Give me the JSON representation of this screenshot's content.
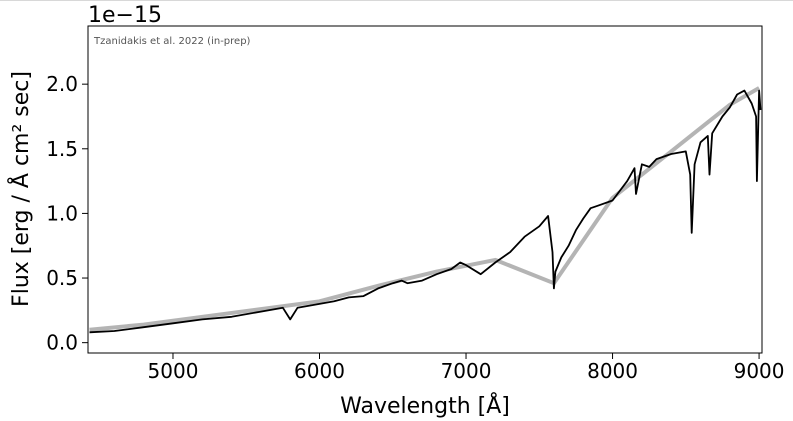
{
  "chart_data": {
    "type": "line",
    "annotation": "Tzanidakis et al. 2022 (in-prep)",
    "xlabel": "Wavelength [Å]",
    "ylabel": "Flux [erg / Å cm² sec]",
    "y_offset_label": "1e−15",
    "xlim": [
      4420,
      9020
    ],
    "ylim": [
      -0.08,
      2.45
    ],
    "x_ticks": [
      5000,
      6000,
      7000,
      8000,
      9000
    ],
    "x_tick_labels": [
      "5000",
      "6000",
      "7000",
      "8000",
      "9000"
    ],
    "y_ticks": [
      0.0,
      0.5,
      1.0,
      1.5,
      2.0
    ],
    "y_tick_labels": [
      "0.0",
      "0.5",
      "1.0",
      "1.5",
      "2.0"
    ],
    "grid": false,
    "series": [
      {
        "role": "flux",
        "color": "#000000",
        "x": [
          4430,
          4600,
          4800,
          5000,
          5200,
          5400,
          5600,
          5750,
          5800,
          5850,
          6000,
          6100,
          6200,
          6300,
          6400,
          6500,
          6560,
          6600,
          6700,
          6800,
          6900,
          6960,
          7000,
          7100,
          7200,
          7300,
          7400,
          7500,
          7560,
          7590,
          7600,
          7610,
          7650,
          7700,
          7750,
          7800,
          7850,
          7900,
          8000,
          8100,
          8150,
          8160,
          8200,
          8250,
          8300,
          8400,
          8500,
          8530,
          8540,
          8560,
          8600,
          8650,
          8662,
          8680,
          8750,
          8800,
          8850,
          8900,
          8950,
          8980,
          8985,
          9000,
          9010
        ],
        "y": [
          0.08,
          0.09,
          0.12,
          0.15,
          0.18,
          0.2,
          0.24,
          0.27,
          0.18,
          0.27,
          0.3,
          0.32,
          0.35,
          0.36,
          0.42,
          0.46,
          0.48,
          0.46,
          0.48,
          0.53,
          0.57,
          0.62,
          0.6,
          0.53,
          0.62,
          0.7,
          0.82,
          0.9,
          0.98,
          0.7,
          0.42,
          0.55,
          0.66,
          0.75,
          0.87,
          0.96,
          1.04,
          1.06,
          1.1,
          1.25,
          1.35,
          1.15,
          1.38,
          1.36,
          1.42,
          1.46,
          1.48,
          1.3,
          0.85,
          1.38,
          1.55,
          1.6,
          1.3,
          1.62,
          1.75,
          1.82,
          1.92,
          1.95,
          1.85,
          1.75,
          1.25,
          1.95,
          1.8
        ]
      },
      {
        "role": "error",
        "color": "#777777",
        "x": [
          4430,
          4800,
          5200,
          5600,
          6000,
          6400,
          6800,
          7200,
          7600,
          8000,
          8400,
          8800,
          9000
        ],
        "y": [
          0.1,
          0.14,
          0.2,
          0.26,
          0.32,
          0.44,
          0.55,
          0.64,
          0.46,
          1.12,
          1.48,
          1.84,
          1.97
        ]
      }
    ]
  }
}
